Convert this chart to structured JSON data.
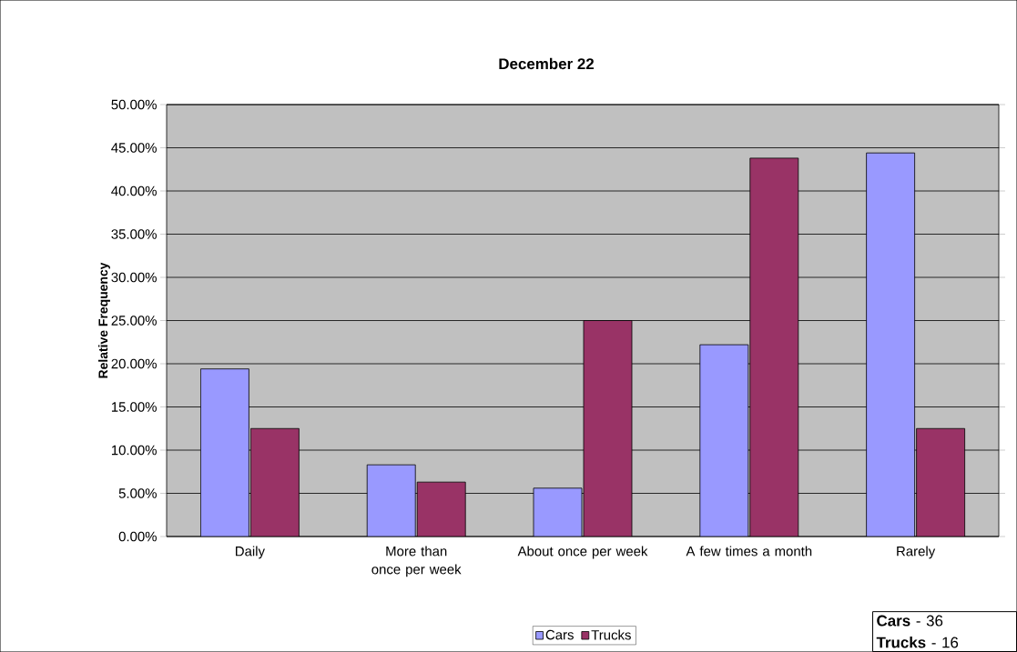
{
  "chart_data": {
    "type": "bar",
    "title": "December 22",
    "ylabel": "Relative Frequency",
    "categories": [
      "Daily",
      "More than once per week",
      "About once per week",
      "A few times a month",
      "Rarely"
    ],
    "series": [
      {
        "name": "Cars",
        "color": "#9999ff",
        "values": [
          19.4,
          8.3,
          5.6,
          22.2,
          44.4
        ]
      },
      {
        "name": "Trucks",
        "color": "#993366",
        "values": [
          12.5,
          6.3,
          25.0,
          43.8,
          12.5
        ]
      }
    ],
    "ylim": [
      0,
      50
    ],
    "yticks": [
      {
        "value": 0,
        "label": "0.00%"
      },
      {
        "value": 5,
        "label": "5.00%"
      },
      {
        "value": 10,
        "label": "10.00%"
      },
      {
        "value": 15,
        "label": "15.00%"
      },
      {
        "value": 20,
        "label": "20.00%"
      },
      {
        "value": 25,
        "label": "25.00%"
      },
      {
        "value": 30,
        "label": "30.00%"
      },
      {
        "value": 35,
        "label": "35.00%"
      },
      {
        "value": 40,
        "label": "40.00%"
      },
      {
        "value": 45,
        "label": "45.00%"
      },
      {
        "value": 50,
        "label": "50.00%"
      }
    ],
    "grid": "y",
    "legend": "bottom",
    "annotations": [
      "**Cars** - 36",
      "**Trucks** - 16"
    ]
  }
}
